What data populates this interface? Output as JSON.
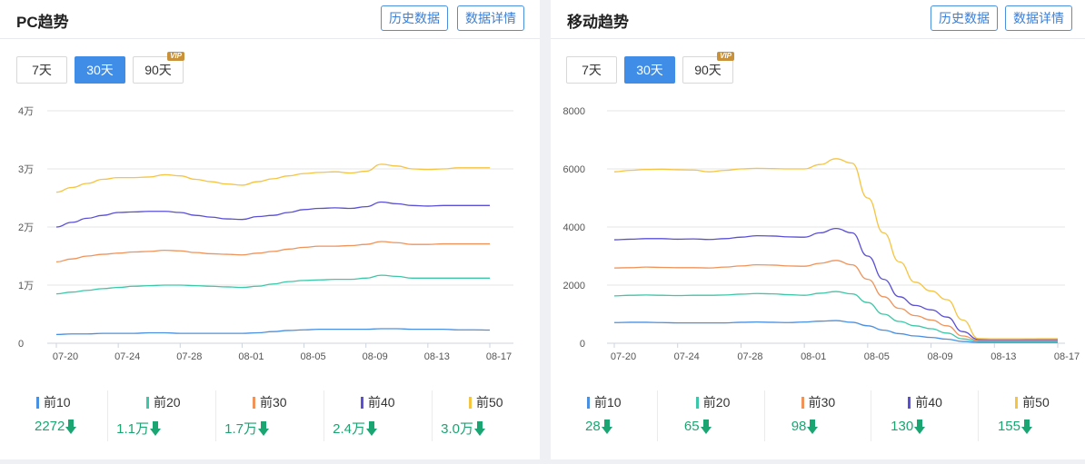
{
  "pc": {
    "title": "PC趋势",
    "history_btn": "历史数据",
    "detail_btn": "数据详情",
    "ranges": [
      "7天",
      "30天",
      "90天"
    ],
    "active_range": "30天",
    "vip_badge": "VIP",
    "stats": [
      {
        "label": "前10",
        "value": "2272",
        "trend": "down"
      },
      {
        "label": "前20",
        "value": "1.1万",
        "trend": "down"
      },
      {
        "label": "前30",
        "value": "1.7万",
        "trend": "down"
      },
      {
        "label": "前40",
        "value": "2.4万",
        "trend": "down"
      },
      {
        "label": "前50",
        "value": "3.0万",
        "trend": "down"
      }
    ]
  },
  "mobile": {
    "title": "移动趋势",
    "history_btn": "历史数据",
    "detail_btn": "数据详情",
    "ranges": [
      "7天",
      "30天",
      "90天"
    ],
    "active_range": "30天",
    "vip_badge": "VIP",
    "stats": [
      {
        "label": "前10",
        "value": "28",
        "trend": "down"
      },
      {
        "label": "前20",
        "value": "65",
        "trend": "down"
      },
      {
        "label": "前30",
        "value": "98",
        "trend": "down"
      },
      {
        "label": "前40",
        "value": "130",
        "trend": "down"
      },
      {
        "label": "前50",
        "value": "155",
        "trend": "down"
      }
    ]
  },
  "colors": {
    "前10": "#4a90e2",
    "前20": "#3cc8a8",
    "前30": "#f0935a",
    "前40": "#5a4fd6",
    "前50": "#f5c441",
    "accent": "#3f8de6",
    "down": "#1aa573"
  },
  "chart_data": [
    {
      "type": "line",
      "id": "pc",
      "x_ticks": [
        "07-20",
        "07-24",
        "07-28",
        "08-01",
        "08-05",
        "08-09",
        "08-13",
        "08-17"
      ],
      "x_start": "07-20",
      "x_end": "08-17",
      "y_ticks": [
        "0",
        "1万",
        "2万",
        "3万",
        "4万"
      ],
      "y_unit": "万",
      "ylim": [
        0,
        4
      ],
      "grid": true,
      "series": [
        {
          "name": "前10",
          "values": [
            0.15,
            0.16,
            0.16,
            0.17,
            0.17,
            0.17,
            0.18,
            0.18,
            0.17,
            0.17,
            0.17,
            0.17,
            0.17,
            0.18,
            0.2,
            0.22,
            0.23,
            0.24,
            0.24,
            0.24,
            0.24,
            0.25,
            0.25,
            0.24,
            0.24,
            0.24,
            0.23,
            0.23,
            0.227
          ]
        },
        {
          "name": "前20",
          "values": [
            0.85,
            0.88,
            0.91,
            0.94,
            0.96,
            0.98,
            0.99,
            1.0,
            1.0,
            0.99,
            0.98,
            0.97,
            0.96,
            0.98,
            1.02,
            1.06,
            1.08,
            1.09,
            1.1,
            1.1,
            1.12,
            1.17,
            1.15,
            1.12,
            1.12,
            1.12,
            1.12,
            1.12,
            1.12
          ]
        },
        {
          "name": "前30",
          "values": [
            1.4,
            1.45,
            1.5,
            1.53,
            1.55,
            1.57,
            1.58,
            1.6,
            1.59,
            1.56,
            1.54,
            1.53,
            1.52,
            1.55,
            1.58,
            1.62,
            1.65,
            1.67,
            1.67,
            1.68,
            1.7,
            1.75,
            1.73,
            1.7,
            1.7,
            1.71,
            1.71,
            1.71,
            1.71
          ]
        },
        {
          "name": "前40",
          "values": [
            2.0,
            2.08,
            2.15,
            2.2,
            2.25,
            2.26,
            2.27,
            2.27,
            2.25,
            2.2,
            2.17,
            2.14,
            2.13,
            2.18,
            2.2,
            2.25,
            2.3,
            2.32,
            2.33,
            2.32,
            2.35,
            2.43,
            2.4,
            2.37,
            2.36,
            2.37,
            2.37,
            2.37,
            2.37
          ]
        },
        {
          "name": "前50",
          "values": [
            2.6,
            2.68,
            2.75,
            2.82,
            2.85,
            2.85,
            2.86,
            2.9,
            2.88,
            2.82,
            2.78,
            2.74,
            2.72,
            2.78,
            2.83,
            2.88,
            2.92,
            2.94,
            2.95,
            2.93,
            2.96,
            3.08,
            3.05,
            3.0,
            2.99,
            3.0,
            3.02,
            3.02,
            3.02
          ]
        }
      ]
    },
    {
      "type": "line",
      "id": "mobile",
      "x_ticks": [
        "07-20",
        "07-24",
        "07-28",
        "08-01",
        "08-05",
        "08-09",
        "08-13",
        "08-17"
      ],
      "x_start": "07-20",
      "x_end": "08-17",
      "y_ticks": [
        "0",
        "2000",
        "4000",
        "6000",
        "8000"
      ],
      "ylim": [
        0,
        8000
      ],
      "grid": true,
      "series": [
        {
          "name": "前10",
          "values": [
            710,
            720,
            720,
            710,
            700,
            700,
            700,
            700,
            720,
            730,
            720,
            710,
            730,
            760,
            780,
            720,
            600,
            450,
            330,
            250,
            200,
            140,
            60,
            30,
            28,
            28,
            28,
            28,
            28
          ]
        },
        {
          "name": "前20",
          "values": [
            1630,
            1650,
            1660,
            1650,
            1640,
            1650,
            1650,
            1660,
            1690,
            1710,
            1700,
            1670,
            1650,
            1720,
            1780,
            1700,
            1400,
            1000,
            750,
            600,
            500,
            350,
            150,
            66,
            65,
            65,
            65,
            65,
            65
          ]
        },
        {
          "name": "前30",
          "values": [
            2590,
            2600,
            2620,
            2610,
            2600,
            2600,
            2590,
            2620,
            2660,
            2700,
            2690,
            2660,
            2650,
            2750,
            2850,
            2700,
            2200,
            1600,
            1200,
            950,
            800,
            600,
            250,
            100,
            98,
            98,
            98,
            98,
            98
          ]
        },
        {
          "name": "前40",
          "values": [
            3560,
            3580,
            3600,
            3600,
            3580,
            3590,
            3570,
            3600,
            3650,
            3700,
            3690,
            3660,
            3650,
            3800,
            3950,
            3800,
            3000,
            2200,
            1600,
            1300,
            1150,
            900,
            400,
            130,
            130,
            130,
            130,
            130,
            130
          ]
        },
        {
          "name": "前50",
          "values": [
            5900,
            5950,
            5980,
            5990,
            5970,
            5960,
            5900,
            5950,
            6000,
            6020,
            6010,
            6000,
            6000,
            6150,
            6350,
            6200,
            5000,
            3800,
            2800,
            2100,
            1800,
            1500,
            800,
            160,
            150,
            150,
            152,
            155,
            155
          ]
        }
      ]
    }
  ]
}
